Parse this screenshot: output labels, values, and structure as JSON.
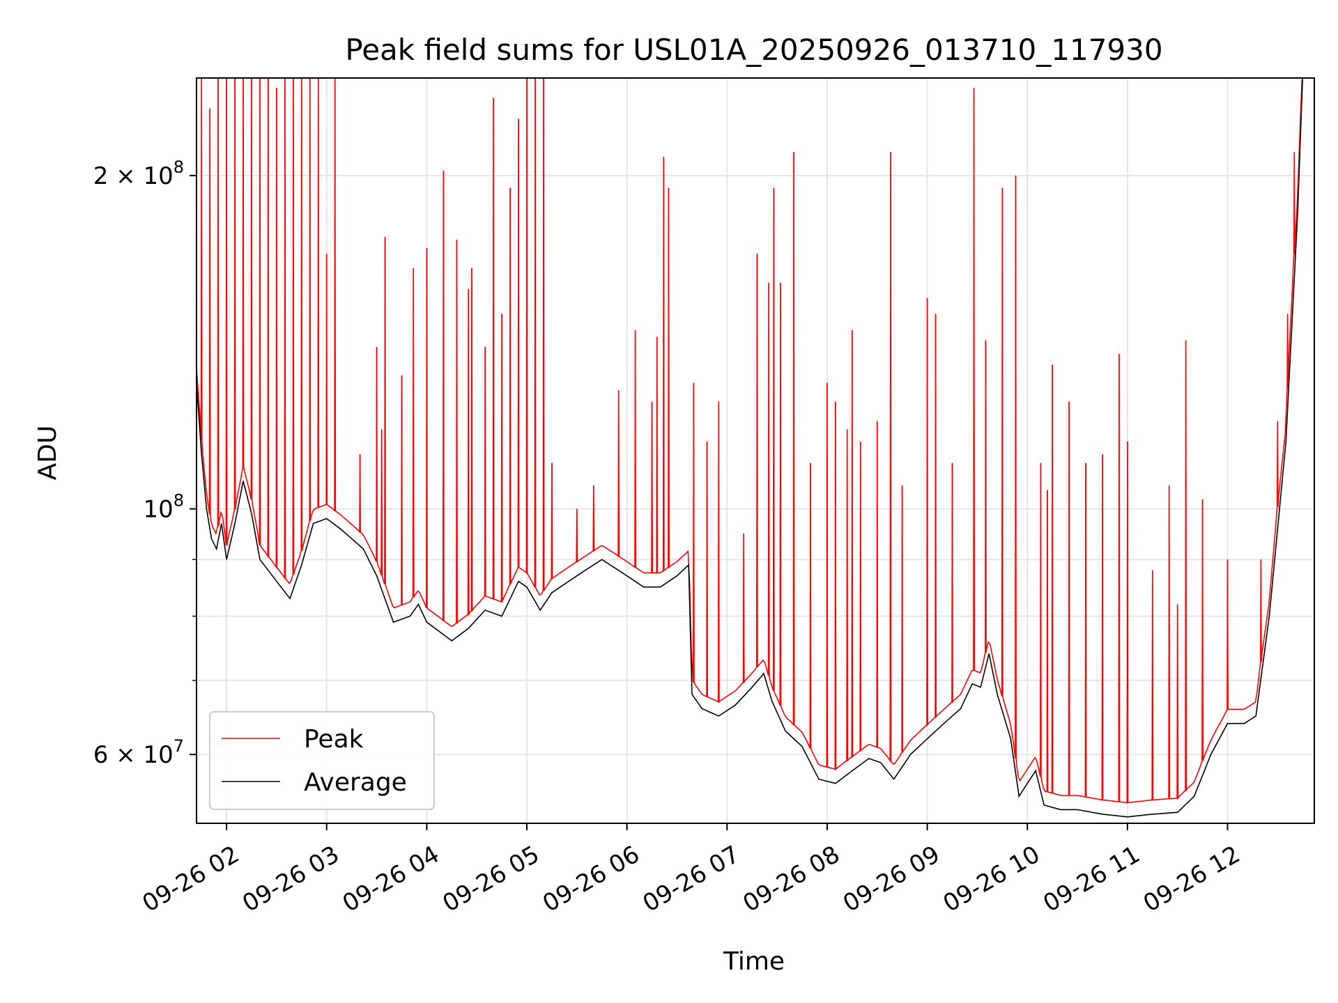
{
  "chart_data": {
    "type": "line",
    "title": "Peak field sums for USL01A_20250926_013710_117930",
    "xlabel": "Time",
    "ylabel": "ADU",
    "yscale": "log",
    "xlim": [
      "2025-09-26 01:42",
      "2025-09-26 12:52"
    ],
    "ylim": [
      52000000,
      245000000
    ],
    "grid": true,
    "legend_position": "lower-left",
    "x_ticks": [
      {
        "value": "2025-09-26 02:00",
        "label": "09-26 02"
      },
      {
        "value": "2025-09-26 03:00",
        "label": "09-26 03"
      },
      {
        "value": "2025-09-26 04:00",
        "label": "09-26 04"
      },
      {
        "value": "2025-09-26 05:00",
        "label": "09-26 05"
      },
      {
        "value": "2025-09-26 06:00",
        "label": "09-26 06"
      },
      {
        "value": "2025-09-26 07:00",
        "label": "09-26 07"
      },
      {
        "value": "2025-09-26 08:00",
        "label": "09-26 08"
      },
      {
        "value": "2025-09-26 09:00",
        "label": "09-26 09"
      },
      {
        "value": "2025-09-26 10:00",
        "label": "09-26 10"
      },
      {
        "value": "2025-09-26 11:00",
        "label": "09-26 11"
      },
      {
        "value": "2025-09-26 12:00",
        "label": "09-26 12"
      }
    ],
    "y_ticks": [
      {
        "value": 60000000,
        "base": "6 × 10",
        "exp": "7"
      },
      {
        "value": 100000000,
        "base": "10",
        "exp": "8"
      },
      {
        "value": 200000000,
        "base": "2 × 10",
        "exp": "8"
      }
    ],
    "y_minor_ticks": [
      70000000,
      80000000,
      90000000
    ],
    "series": [
      {
        "name": "Average",
        "color": "#000000",
        "points": [
          [
            "2025-09-26 01:42",
            130000000
          ],
          [
            "2025-09-26 01:45",
            112000000
          ],
          [
            "2025-09-26 01:48",
            100000000
          ],
          [
            "2025-09-26 01:51",
            94000000
          ],
          [
            "2025-09-26 01:54",
            92000000
          ],
          [
            "2025-09-26 01:57",
            97000000
          ],
          [
            "2025-09-26 02:00",
            90000000
          ],
          [
            "2025-09-26 02:05",
            97000000
          ],
          [
            "2025-09-26 02:10",
            106000000
          ],
          [
            "2025-09-26 02:15",
            99000000
          ],
          [
            "2025-09-26 02:20",
            90000000
          ],
          [
            "2025-09-26 02:25",
            88000000
          ],
          [
            "2025-09-26 02:30",
            86000000
          ],
          [
            "2025-09-26 02:38",
            83000000
          ],
          [
            "2025-09-26 02:45",
            89000000
          ],
          [
            "2025-09-26 02:52",
            97000000
          ],
          [
            "2025-09-26 03:00",
            98000000
          ],
          [
            "2025-09-26 03:08",
            96000000
          ],
          [
            "2025-09-26 03:15",
            94000000
          ],
          [
            "2025-09-26 03:22",
            92000000
          ],
          [
            "2025-09-26 03:30",
            87000000
          ],
          [
            "2025-09-26 03:40",
            79000000
          ],
          [
            "2025-09-26 03:50",
            80000000
          ],
          [
            "2025-09-26 03:55",
            82000000
          ],
          [
            "2025-09-26 04:00",
            79000000
          ],
          [
            "2025-09-26 04:10",
            77000000
          ],
          [
            "2025-09-26 04:15",
            76000000
          ],
          [
            "2025-09-26 04:25",
            78000000
          ],
          [
            "2025-09-26 04:35",
            81000000
          ],
          [
            "2025-09-26 04:45",
            80000000
          ],
          [
            "2025-09-26 04:55",
            86000000
          ],
          [
            "2025-09-26 05:00",
            85000000
          ],
          [
            "2025-09-26 05:08",
            81000000
          ],
          [
            "2025-09-26 05:15",
            84000000
          ],
          [
            "2025-09-26 05:25",
            86000000
          ],
          [
            "2025-09-26 05:35",
            88000000
          ],
          [
            "2025-09-26 05:45",
            90000000
          ],
          [
            "2025-09-26 05:55",
            88000000
          ],
          [
            "2025-09-26 06:05",
            86000000
          ],
          [
            "2025-09-26 06:10",
            85000000
          ],
          [
            "2025-09-26 06:20",
            85000000
          ],
          [
            "2025-09-26 06:30",
            87000000
          ],
          [
            "2025-09-26 06:37",
            89000000
          ],
          [
            "2025-09-26 06:39",
            68000000
          ],
          [
            "2025-09-26 06:45",
            66000000
          ],
          [
            "2025-09-26 06:55",
            65000000
          ],
          [
            "2025-09-26 07:05",
            66500000
          ],
          [
            "2025-09-26 07:15",
            69000000
          ],
          [
            "2025-09-26 07:22",
            71000000
          ],
          [
            "2025-09-26 07:27",
            67000000
          ],
          [
            "2025-09-26 07:35",
            63000000
          ],
          [
            "2025-09-26 07:45",
            61000000
          ],
          [
            "2025-09-26 07:55",
            57000000
          ],
          [
            "2025-09-26 08:05",
            56500000
          ],
          [
            "2025-09-26 08:15",
            58000000
          ],
          [
            "2025-09-26 08:25",
            59500000
          ],
          [
            "2025-09-26 08:32",
            59000000
          ],
          [
            "2025-09-26 08:40",
            57000000
          ],
          [
            "2025-09-26 08:50",
            60000000
          ],
          [
            "2025-09-26 09:00",
            62000000
          ],
          [
            "2025-09-26 09:10",
            64000000
          ],
          [
            "2025-09-26 09:20",
            66000000
          ],
          [
            "2025-09-26 09:27",
            69500000
          ],
          [
            "2025-09-26 09:32",
            69000000
          ],
          [
            "2025-09-26 09:37",
            74000000
          ],
          [
            "2025-09-26 09:42",
            68000000
          ],
          [
            "2025-09-26 09:50",
            62000000
          ],
          [
            "2025-09-26 09:55",
            55000000
          ],
          [
            "2025-09-26 10:00",
            56500000
          ],
          [
            "2025-09-26 10:05",
            58000000
          ],
          [
            "2025-09-26 10:10",
            54000000
          ],
          [
            "2025-09-26 10:20",
            53500000
          ],
          [
            "2025-09-26 10:30",
            53500000
          ],
          [
            "2025-09-26 10:45",
            53000000
          ],
          [
            "2025-09-26 11:00",
            52700000
          ],
          [
            "2025-09-26 11:15",
            53000000
          ],
          [
            "2025-09-26 11:30",
            53200000
          ],
          [
            "2025-09-26 11:40",
            55000000
          ],
          [
            "2025-09-26 11:50",
            60000000
          ],
          [
            "2025-09-26 12:00",
            64000000
          ],
          [
            "2025-09-26 12:10",
            64000000
          ],
          [
            "2025-09-26 12:17",
            65000000
          ],
          [
            "2025-09-26 12:25",
            80000000
          ],
          [
            "2025-09-26 12:35",
            115000000
          ],
          [
            "2025-09-26 12:42",
            185000000
          ],
          [
            "2025-09-26 12:45",
            245000000
          ]
        ]
      },
      {
        "name": "Peak",
        "color": "#ff0000",
        "baseline_offset_ratio": 1.03,
        "spikes": [
          [
            "2025-09-26 01:45",
            245000000
          ],
          [
            "2025-09-26 01:50",
            230000000
          ],
          [
            "2025-09-26 01:55",
            245000000
          ],
          [
            "2025-09-26 02:00",
            245000000
          ],
          [
            "2025-09-26 02:05",
            245000000
          ],
          [
            "2025-09-26 02:10",
            245000000
          ],
          [
            "2025-09-26 02:15",
            245000000
          ],
          [
            "2025-09-26 02:20",
            245000000
          ],
          [
            "2025-09-26 02:25",
            245000000
          ],
          [
            "2025-09-26 02:30",
            240000000
          ],
          [
            "2025-09-26 02:35",
            245000000
          ],
          [
            "2025-09-26 02:40",
            245000000
          ],
          [
            "2025-09-26 02:45",
            245000000
          ],
          [
            "2025-09-26 02:50",
            245000000
          ],
          [
            "2025-09-26 02:55",
            245000000
          ],
          [
            "2025-09-26 03:00",
            170000000
          ],
          [
            "2025-09-26 03:05",
            245000000
          ],
          [
            "2025-09-26 03:20",
            112000000
          ],
          [
            "2025-09-26 03:30",
            140000000
          ],
          [
            "2025-09-26 03:33",
            118000000
          ],
          [
            "2025-09-26 03:35",
            176000000
          ],
          [
            "2025-09-26 03:45",
            132000000
          ],
          [
            "2025-09-26 03:52",
            165000000
          ],
          [
            "2025-09-26 04:00",
            172000000
          ],
          [
            "2025-09-26 04:10",
            202000000
          ],
          [
            "2025-09-26 04:18",
            175000000
          ],
          [
            "2025-09-26 04:25",
            158000000
          ],
          [
            "2025-09-26 04:27",
            165000000
          ],
          [
            "2025-09-26 04:35",
            140000000
          ],
          [
            "2025-09-26 04:40",
            235000000
          ],
          [
            "2025-09-26 04:45",
            150000000
          ],
          [
            "2025-09-26 04:50",
            195000000
          ],
          [
            "2025-09-26 04:55",
            225000000
          ],
          [
            "2025-09-26 05:00",
            245000000
          ],
          [
            "2025-09-26 05:05",
            245000000
          ],
          [
            "2025-09-26 05:10",
            245000000
          ],
          [
            "2025-09-26 05:15",
            110000000
          ],
          [
            "2025-09-26 05:30",
            100000000
          ],
          [
            "2025-09-26 05:40",
            105000000
          ],
          [
            "2025-09-26 05:55",
            128000000
          ],
          [
            "2025-09-26 06:05",
            145000000
          ],
          [
            "2025-09-26 06:15",
            125000000
          ],
          [
            "2025-09-26 06:18",
            143000000
          ],
          [
            "2025-09-26 06:22",
            208000000
          ],
          [
            "2025-09-26 06:25",
            195000000
          ],
          [
            "2025-09-26 06:40",
            130000000
          ],
          [
            "2025-09-26 06:48",
            115000000
          ],
          [
            "2025-09-26 06:55",
            125000000
          ],
          [
            "2025-09-26 07:10",
            95000000
          ],
          [
            "2025-09-26 07:18",
            170000000
          ],
          [
            "2025-09-26 07:25",
            160000000
          ],
          [
            "2025-09-26 07:28",
            195000000
          ],
          [
            "2025-09-26 07:32",
            160000000
          ],
          [
            "2025-09-26 07:40",
            210000000
          ],
          [
            "2025-09-26 07:50",
            110000000
          ],
          [
            "2025-09-26 08:00",
            130000000
          ],
          [
            "2025-09-26 08:05",
            125000000
          ],
          [
            "2025-09-26 08:12",
            118000000
          ],
          [
            "2025-09-26 08:15",
            145000000
          ],
          [
            "2025-09-26 08:20",
            115000000
          ],
          [
            "2025-09-26 08:30",
            120000000
          ],
          [
            "2025-09-26 08:38",
            210000000
          ],
          [
            "2025-09-26 08:45",
            105000000
          ],
          [
            "2025-09-26 09:00",
            155000000
          ],
          [
            "2025-09-26 09:05",
            150000000
          ],
          [
            "2025-09-26 09:15",
            110000000
          ],
          [
            "2025-09-26 09:28",
            240000000
          ],
          [
            "2025-09-26 09:35",
            142000000
          ],
          [
            "2025-09-26 09:45",
            195000000
          ],
          [
            "2025-09-26 09:53",
            200000000
          ],
          [
            "2025-09-26 10:08",
            110000000
          ],
          [
            "2025-09-26 10:12",
            104000000
          ],
          [
            "2025-09-26 10:15",
            135000000
          ],
          [
            "2025-09-26 10:25",
            125000000
          ],
          [
            "2025-09-26 10:35",
            110000000
          ],
          [
            "2025-09-26 10:45",
            112000000
          ],
          [
            "2025-09-26 10:55",
            138000000
          ],
          [
            "2025-09-26 11:00",
            115000000
          ],
          [
            "2025-09-26 11:15",
            88000000
          ],
          [
            "2025-09-26 11:25",
            105000000
          ],
          [
            "2025-09-26 11:30",
            82000000
          ],
          [
            "2025-09-26 11:35",
            142000000
          ],
          [
            "2025-09-26 11:45",
            102000000
          ],
          [
            "2025-09-26 12:00",
            90000000
          ],
          [
            "2025-09-26 12:20",
            90000000
          ],
          [
            "2025-09-26 12:30",
            120000000
          ],
          [
            "2025-09-26 12:36",
            150000000
          ],
          [
            "2025-09-26 12:40",
            210000000
          ]
        ]
      }
    ],
    "legend": [
      {
        "label": "Peak",
        "color": "#ff0000"
      },
      {
        "label": "Average",
        "color": "#000000"
      }
    ]
  }
}
